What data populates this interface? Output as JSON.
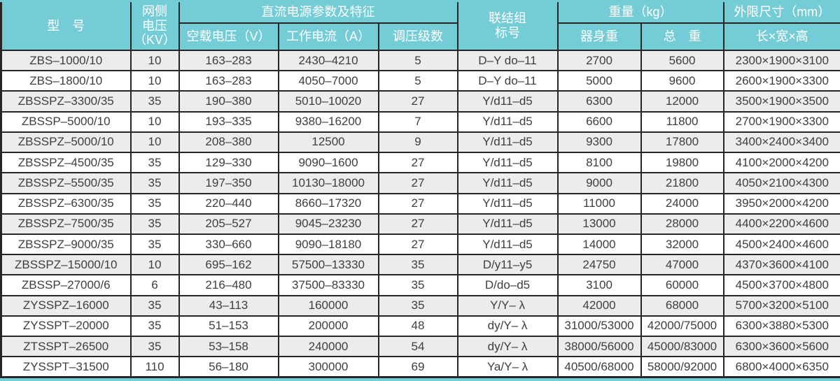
{
  "table": {
    "header": {
      "model": "型　号",
      "grid_voltage": "网侧\n电压\n（KV）",
      "dc_params_group": "直流电源参数及特征",
      "no_load_voltage": "空载电压（V）",
      "working_current": "工作电流（A）",
      "regulation_steps": "调压级数",
      "connection": "联结组\n标号",
      "weight_group": "重量（kg）",
      "body_weight": "器身重",
      "total_weight": "总　重",
      "dimensions_group": "外限尺寸（mm）",
      "dimensions_sub": "长×宽×高"
    },
    "rows": [
      [
        "ZBS–1000/10",
        "10",
        "163–283",
        "2430–4210",
        "5",
        "D–Y do–11",
        "2700",
        "5600",
        "2300×1900×3100"
      ],
      [
        "ZBS–1800/10",
        "10",
        "163–283",
        "4050–7000",
        "5",
        "D–Y do–11",
        "5000",
        "9600",
        "2600×1900×3300"
      ],
      [
        "ZBSSPZ–3300/35",
        "35",
        "190–380",
        "5010–10020",
        "27",
        "Y/d11–d5",
        "6300",
        "12000",
        "3500×1900×3500"
      ],
      [
        "ZBSSP–5000/10",
        "10",
        "193–335",
        "9380–16200",
        "7",
        "Y/d11–d5",
        "6600",
        "11800",
        "2700×1900×3300"
      ],
      [
        "ZBSSPZ–5000/10",
        "10",
        "208–380",
        "12500",
        "9",
        "Y/d11–d5",
        "9300",
        "17800",
        "3400×2400×3400"
      ],
      [
        "ZBSSPZ–4500/35",
        "35",
        "129–330",
        "9090–1600",
        "27",
        "Y/d11–d5",
        "8100",
        "19800",
        "4100×2000×4200"
      ],
      [
        "ZBSSPZ–5500/35",
        "35",
        "197–350",
        "10130–18000",
        "27",
        "Y/d11–d5",
        "9000",
        "21800",
        "4050×2100×4300"
      ],
      [
        "ZBSSPZ–6300/35",
        "35",
        "220–440",
        "8660–17320",
        "27",
        "Y/d11–d5",
        "11000",
        "24000",
        "3950×2000×4200"
      ],
      [
        "ZBSSPZ–7500/35",
        "35",
        "205–527",
        "9045–23230",
        "27",
        "Y/d11–d5",
        "13000",
        "28000",
        "4400×2200×4600"
      ],
      [
        "ZBSSPZ–9000/35",
        "35",
        "330–660",
        "9090–18180",
        "27",
        "Y/d11–d5",
        "14000",
        "32000",
        "4500×2400×4600"
      ],
      [
        "ZBSSPZ–15000/10",
        "10",
        "695–162",
        "57500–13330",
        "35",
        "D/y11–y5",
        "24750",
        "47000",
        "4370×3600×4100"
      ],
      [
        "ZBSSP–27000/6",
        "6",
        "216–480",
        "37500–83330",
        "35",
        "D/do–d5",
        "3100",
        "60000",
        "4500×3700×4800"
      ],
      [
        "ZYSSPZ–16000",
        "35",
        "43–113",
        "160000",
        "35",
        "Y/Y– λ",
        "42000",
        "68000",
        "5700×3200×5100"
      ],
      [
        "ZYSSPT–20000",
        "35",
        "51–153",
        "200000",
        "48",
        "dy/Y– λ",
        "31000/53000",
        "42000/75000",
        "6300×3880×5300"
      ],
      [
        "ZTSSPT–26500",
        "35",
        "53–158",
        "240000",
        "54",
        "dy/Y– λ",
        "38000/56000",
        "45000/83000",
        "6300×3600×5600"
      ],
      [
        "ZYSSPT–31500",
        "110",
        "56–180",
        "300000",
        "69",
        "Ya/Y– λ",
        "40500/68000",
        "58000/92000",
        "6800×4000×6350"
      ]
    ]
  },
  "colors": {
    "header_teal": "#73CCD6",
    "row_alternate": "#ECECEC",
    "grid_border": "#262626",
    "body_text": "#3E3E3E",
    "header_text": "#FFFFFF"
  }
}
